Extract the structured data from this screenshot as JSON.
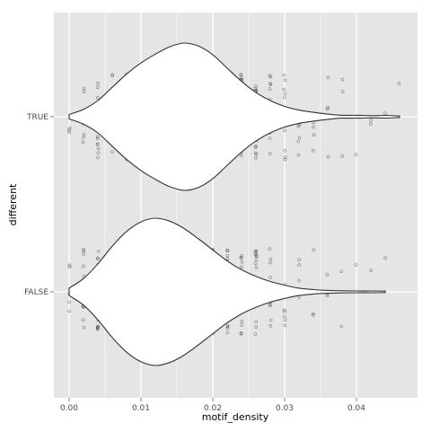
{
  "chart_data": {
    "type": "violin",
    "xlabel": "motif_density",
    "ylabel": "different",
    "xlim": [
      -0.002,
      0.048
    ],
    "xticks": [
      0.0,
      0.01,
      0.02,
      0.03,
      0.04
    ],
    "xtick_labels": [
      "0.00",
      "0.01",
      "0.02",
      "0.03",
      "0.04"
    ],
    "categories": [
      "TRUE",
      "FALSE"
    ],
    "grid": true,
    "legend": "none",
    "colors": {
      "panel": "#e5e5e5",
      "grid_major": "#ffffff",
      "grid_minor": "#f2f2f2",
      "violin_fill": "#ffffff",
      "violin_line": "#333333",
      "point": "#333333"
    },
    "series": [
      {
        "name": "TRUE",
        "range": [
          0.0,
          0.046
        ],
        "density_profile": [
          [
            0.0,
            0.03
          ],
          [
            0.002,
            0.1
          ],
          [
            0.004,
            0.22
          ],
          [
            0.006,
            0.4
          ],
          [
            0.008,
            0.58
          ],
          [
            0.01,
            0.73
          ],
          [
            0.012,
            0.85
          ],
          [
            0.014,
            0.95
          ],
          [
            0.016,
            1.0
          ],
          [
            0.018,
            0.96
          ],
          [
            0.02,
            0.84
          ],
          [
            0.022,
            0.66
          ],
          [
            0.024,
            0.48
          ],
          [
            0.026,
            0.33
          ],
          [
            0.028,
            0.22
          ],
          [
            0.03,
            0.14
          ],
          [
            0.032,
            0.09
          ],
          [
            0.034,
            0.06
          ],
          [
            0.036,
            0.035
          ],
          [
            0.038,
            0.02
          ],
          [
            0.04,
            0.02
          ],
          [
            0.042,
            0.015
          ],
          [
            0.044,
            0.018
          ],
          [
            0.046,
            0.01
          ]
        ],
        "point_columns": [
          [
            0.0,
            3
          ],
          [
            0.002,
            6
          ],
          [
            0.004,
            14
          ],
          [
            0.006,
            22
          ],
          [
            0.008,
            34
          ],
          [
            0.01,
            38
          ],
          [
            0.012,
            46
          ],
          [
            0.014,
            48
          ],
          [
            0.016,
            50
          ],
          [
            0.018,
            46
          ],
          [
            0.02,
            42
          ],
          [
            0.022,
            32
          ],
          [
            0.024,
            26
          ],
          [
            0.026,
            20
          ],
          [
            0.028,
            14
          ],
          [
            0.03,
            10
          ],
          [
            0.032,
            7
          ],
          [
            0.034,
            5
          ],
          [
            0.036,
            4
          ],
          [
            0.038,
            3
          ],
          [
            0.04,
            1
          ],
          [
            0.042,
            2
          ],
          [
            0.044,
            1
          ],
          [
            0.046,
            1
          ]
        ]
      },
      {
        "name": "FALSE",
        "range": [
          0.0,
          0.044
        ],
        "density_profile": [
          [
            0.0,
            0.05
          ],
          [
            0.002,
            0.18
          ],
          [
            0.004,
            0.38
          ],
          [
            0.006,
            0.62
          ],
          [
            0.008,
            0.82
          ],
          [
            0.01,
            0.95
          ],
          [
            0.012,
            1.0
          ],
          [
            0.014,
            0.96
          ],
          [
            0.016,
            0.86
          ],
          [
            0.018,
            0.72
          ],
          [
            0.02,
            0.57
          ],
          [
            0.022,
            0.42
          ],
          [
            0.024,
            0.3
          ],
          [
            0.026,
            0.21
          ],
          [
            0.028,
            0.14
          ],
          [
            0.03,
            0.09
          ],
          [
            0.032,
            0.05
          ],
          [
            0.034,
            0.03
          ],
          [
            0.036,
            0.02
          ],
          [
            0.038,
            0.015
          ],
          [
            0.04,
            0.012
          ],
          [
            0.042,
            0.012
          ],
          [
            0.044,
            0.01
          ]
        ],
        "point_columns": [
          [
            0.0,
            5
          ],
          [
            0.002,
            14
          ],
          [
            0.004,
            26
          ],
          [
            0.006,
            40
          ],
          [
            0.008,
            52
          ],
          [
            0.01,
            56
          ],
          [
            0.012,
            60
          ],
          [
            0.014,
            56
          ],
          [
            0.016,
            50
          ],
          [
            0.018,
            44
          ],
          [
            0.02,
            36
          ],
          [
            0.022,
            26
          ],
          [
            0.024,
            20
          ],
          [
            0.026,
            14
          ],
          [
            0.028,
            10
          ],
          [
            0.03,
            7
          ],
          [
            0.032,
            4
          ],
          [
            0.034,
            3
          ],
          [
            0.036,
            3
          ],
          [
            0.038,
            2
          ],
          [
            0.04,
            1
          ],
          [
            0.042,
            1
          ],
          [
            0.044,
            1
          ]
        ]
      }
    ]
  }
}
